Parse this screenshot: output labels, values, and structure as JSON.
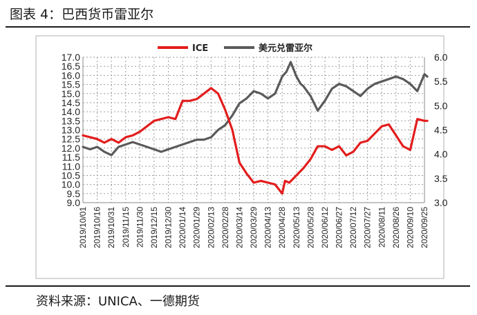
{
  "figure": {
    "title": "图表 4：巴西货币雷亚尔",
    "source": "资料来源：UNICA、一德期货"
  },
  "chart_data": {
    "type": "line",
    "title": "",
    "legend": "top-center",
    "grid": true,
    "colors": {
      "ICE": "#e31c1c",
      "美元兑雷亚尔": "#5a5a5a"
    },
    "left_axis": {
      "min": 9.0,
      "max": 17.0,
      "ticks": [
        "9.0",
        "9.5",
        "10.0",
        "10.5",
        "11.0",
        "11.5",
        "12.0",
        "12.5",
        "13.0",
        "13.5",
        "14.0",
        "14.5",
        "15.0",
        "15.5",
        "16.0",
        "16.5",
        "17.0"
      ]
    },
    "right_axis": {
      "min": 3.0,
      "max": 6.0,
      "ticks": [
        "3.0",
        "3.5",
        "4.0",
        "4.5",
        "5.0",
        "5.5",
        "6.0"
      ]
    },
    "x_ticks": [
      "2019/10/01",
      "2019/10/16",
      "2019/10/31",
      "2019/11/15",
      "2019/11/30",
      "2019/12/15",
      "2019/12/30",
      "2020/01/14",
      "2020/01/29",
      "2020/02/13",
      "2020/02/28",
      "2020/03/14",
      "2020/03/29",
      "2020/04/13",
      "2020/04/28",
      "2020/05/13",
      "2020/05/28",
      "2020/06/12",
      "2020/06/27",
      "2020/07/12",
      "2020/07/27",
      "2020/08/11",
      "2020/08/26",
      "2020/09/10",
      "2020/09/25"
    ],
    "series": [
      {
        "name": "ICE",
        "axis": "left",
        "x_index": [
          0,
          1,
          1.5,
          2,
          2.5,
          3,
          3.5,
          4,
          4.5,
          5,
          5.5,
          6,
          6.5,
          7,
          7.5,
          8,
          8.5,
          9,
          9.5,
          10,
          10.5,
          11,
          11.5,
          12,
          12.5,
          13,
          13.5,
          14,
          14.2,
          14.5,
          15,
          15.5,
          16,
          16.5,
          17,
          17.5,
          18,
          18.5,
          19,
          19.5,
          20,
          20.5,
          21,
          21.5,
          22,
          22.5,
          23,
          23.5,
          24,
          24.2
        ],
        "values": [
          12.7,
          12.5,
          12.3,
          12.5,
          12.3,
          12.6,
          12.7,
          12.9,
          13.2,
          13.5,
          13.6,
          13.7,
          13.6,
          14.6,
          14.6,
          14.7,
          15.0,
          15.3,
          15.0,
          14.1,
          13.0,
          11.2,
          10.6,
          10.1,
          10.2,
          10.1,
          10.0,
          9.5,
          10.2,
          10.1,
          10.5,
          10.9,
          11.4,
          12.1,
          12.1,
          11.9,
          12.1,
          11.6,
          11.8,
          12.3,
          12.4,
          12.8,
          13.2,
          13.3,
          12.7,
          12.1,
          11.9,
          13.6,
          13.5,
          13.5
        ]
      },
      {
        "name": "美元兑雷亚尔",
        "axis": "right",
        "x_index": [
          0,
          0.5,
          1,
          1.5,
          2,
          2.5,
          3,
          3.5,
          4,
          4.5,
          5,
          5.5,
          6,
          6.5,
          7,
          7.5,
          8,
          8.5,
          9,
          9.5,
          10,
          10.5,
          11,
          11.5,
          12,
          12.5,
          13,
          13.5,
          14,
          14.3,
          14.6,
          15,
          15.3,
          15.5,
          16,
          16.5,
          17,
          17.5,
          18,
          18.5,
          19,
          19.5,
          20,
          20.5,
          21,
          21.5,
          22,
          22.5,
          23,
          23.5,
          24,
          24.2
        ],
        "values": [
          4.15,
          4.1,
          4.15,
          4.05,
          3.98,
          4.15,
          4.2,
          4.25,
          4.2,
          4.15,
          4.1,
          4.05,
          4.1,
          4.15,
          4.2,
          4.25,
          4.3,
          4.3,
          4.35,
          4.5,
          4.6,
          4.8,
          5.05,
          5.15,
          5.3,
          5.25,
          5.15,
          5.25,
          5.6,
          5.7,
          5.9,
          5.6,
          5.45,
          5.4,
          5.2,
          4.9,
          5.1,
          5.35,
          5.45,
          5.4,
          5.3,
          5.2,
          5.35,
          5.45,
          5.5,
          5.55,
          5.6,
          5.55,
          5.45,
          5.3,
          5.65,
          5.6
        ]
      }
    ]
  }
}
